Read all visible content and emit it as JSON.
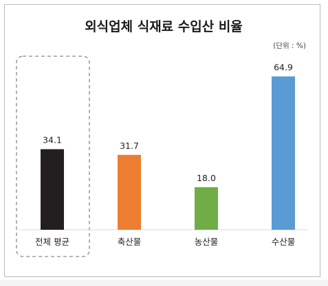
{
  "chart_data": {
    "type": "bar",
    "title": "외식업체 식재료 수입산 비율",
    "unit_note": "(단위 : %)",
    "categories": [
      "전체 평균",
      "축산물",
      "농산물",
      "수산물"
    ],
    "values": [
      34.1,
      31.7,
      18.0,
      64.9
    ],
    "value_labels": [
      "34.1",
      "31.7",
      "18.0",
      "64.9"
    ],
    "colors": [
      "#231f20",
      "#ed7d31",
      "#70ad47",
      "#5b9bd5"
    ],
    "highlighted_category": "전체 평균",
    "grid": false,
    "legend": "none"
  }
}
